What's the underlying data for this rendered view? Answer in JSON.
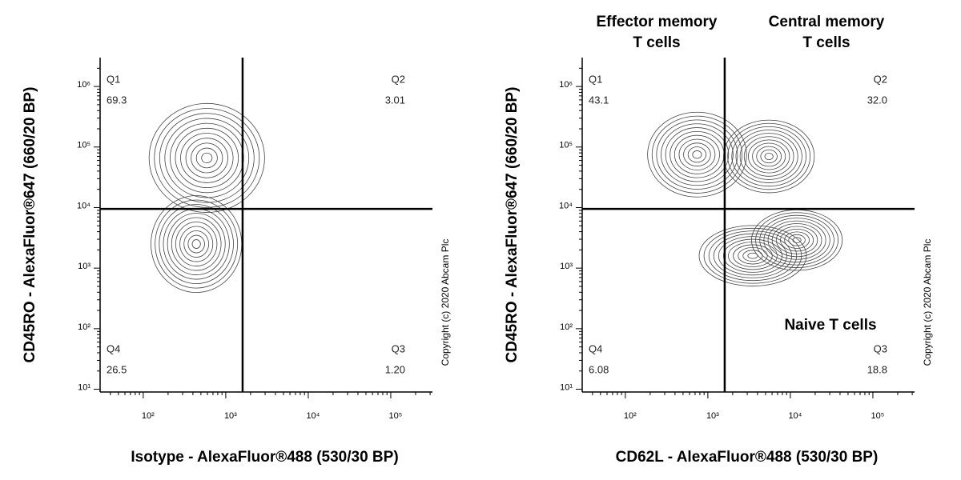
{
  "chart_data": [
    {
      "type": "contour",
      "xlabel": "Isotype - AlexaFluor®488 (530/30 BP)",
      "ylabel": "CD45RO - AlexaFluor®647 (660/20 BP)",
      "copyright": "Copyright (c) 2020 Abcam Plc",
      "xscale": "log",
      "yscale": "log",
      "xlim": [
        30,
        320000
      ],
      "ylim": [
        9,
        3000000
      ],
      "xticks": [
        {
          "value": 100,
          "label": "10²"
        },
        {
          "value": 1000,
          "label": "10³"
        },
        {
          "value": 10000,
          "label": "10⁴"
        },
        {
          "value": 100000,
          "label": "10⁵"
        }
      ],
      "yticks": [
        {
          "value": 10,
          "label": "10¹"
        },
        {
          "value": 100,
          "label": "10²"
        },
        {
          "value": 1000,
          "label": "10³"
        },
        {
          "value": 10000,
          "label": "10⁴"
        },
        {
          "value": 100000,
          "label": "10⁵"
        },
        {
          "value": 1000000,
          "label": "10⁶"
        }
      ],
      "gates": {
        "x": 1600,
        "y": 9500
      },
      "color": "#444444",
      "quadrants": [
        {
          "name": "Q1",
          "value": 69.3
        },
        {
          "name": "Q2",
          "value": 3.01
        },
        {
          "name": "Q4",
          "value": 26.5
        },
        {
          "name": "Q3",
          "value": 1.2,
          "value_label": "1.20"
        }
      ],
      "clusters": [
        {
          "x": 590,
          "y": 66000,
          "rx": 0.7,
          "ry": 0.9
        },
        {
          "x": 440,
          "y": 2500,
          "rx": 0.55,
          "ry": 0.8
        }
      ]
    },
    {
      "type": "contour",
      "xlabel": "CD62L - AlexaFluor®488 (530/30 BP)",
      "ylabel": "CD45RO - AlexaFluor®647 (660/20 BP)",
      "copyright": "Copyright (c) 2020 Abcam Plc",
      "xscale": "log",
      "yscale": "log",
      "xlim": [
        30,
        320000
      ],
      "ylim": [
        9,
        3000000
      ],
      "xticks": [
        {
          "value": 100,
          "label": "10²"
        },
        {
          "value": 1000,
          "label": "10³"
        },
        {
          "value": 10000,
          "label": "10⁴"
        },
        {
          "value": 100000,
          "label": "10⁵"
        }
      ],
      "yticks": [
        {
          "value": 10,
          "label": "10¹"
        },
        {
          "value": 100,
          "label": "10²"
        },
        {
          "value": 1000,
          "label": "10³"
        },
        {
          "value": 10000,
          "label": "10⁴"
        },
        {
          "value": 100000,
          "label": "10⁵"
        },
        {
          "value": 1000000,
          "label": "10⁶"
        }
      ],
      "gates": {
        "x": 1600,
        "y": 9500
      },
      "color": "#444444",
      "quadrants": [
        {
          "name": "Q1",
          "value": 43.1
        },
        {
          "name": "Q2",
          "value": 32,
          "value_label": "32.0"
        },
        {
          "name": "Q4",
          "value": 6.08
        },
        {
          "name": "Q3",
          "value": 18.8
        }
      ],
      "clusters": [
        {
          "x": 740,
          "y": 75000,
          "rx": 0.6,
          "ry": 0.7
        },
        {
          "x": 5500,
          "y": 70000,
          "rx": 0.55,
          "ry": 0.6
        },
        {
          "x": 12000,
          "y": 2900,
          "rx": 0.55,
          "ry": 0.5
        },
        {
          "x": 3500,
          "y": 1600,
          "rx": 0.65,
          "ry": 0.5
        }
      ],
      "annotations": [
        [
          "Effector memory",
          "T cells"
        ],
        [
          "Central memory",
          "T cells"
        ],
        [
          "Naive T cells"
        ]
      ]
    }
  ]
}
